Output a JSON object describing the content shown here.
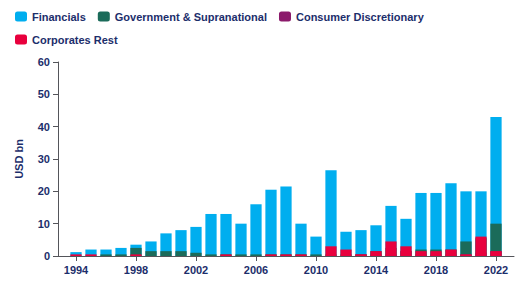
{
  "chart_data": {
    "type": "bar",
    "stacked": true,
    "ylabel": "USD bn",
    "x": [
      1994,
      1995,
      1996,
      1997,
      1998,
      1999,
      2000,
      2001,
      2002,
      2003,
      2004,
      2005,
      2006,
      2007,
      2008,
      2009,
      2010,
      2011,
      2012,
      2013,
      2014,
      2015,
      2016,
      2017,
      2018,
      2019,
      2020,
      2021,
      2022
    ],
    "series": [
      {
        "name": "Financials",
        "color": "#00AEEF",
        "values": [
          1.2,
          2.0,
          2.0,
          2.5,
          3.5,
          4.5,
          7.0,
          8.0,
          9.0,
          13.0,
          13.0,
          10.0,
          16.0,
          20.5,
          21.5,
          10.0,
          6.0,
          26.5,
          7.5,
          8.0,
          9.5,
          15.5,
          11.5,
          19.5,
          19.5,
          22.5,
          20.0,
          20.0,
          43.0
        ]
      },
      {
        "name": "Government & Supranational",
        "color": "#1B6B5A",
        "values": [
          0.0,
          0.0,
          0.5,
          0.5,
          2.5,
          1.5,
          1.5,
          1.5,
          1.0,
          0.5,
          0.5,
          0.5,
          0.5,
          0.5,
          0.5,
          0.5,
          0.5,
          0.5,
          0.5,
          0.5,
          1.5,
          2.5,
          1.5,
          2.0,
          2.0,
          2.0,
          4.5,
          5.5,
          10.0
        ]
      },
      {
        "name": "Consumer Discretionary",
        "color": "#8B1A6B",
        "values": [
          0.0,
          0.0,
          0.0,
          0.0,
          0.0,
          0.0,
          0.0,
          0.0,
          0.0,
          0.0,
          0.0,
          0.0,
          0.0,
          0.0,
          0.0,
          0.0,
          0.0,
          0.0,
          0.0,
          0.5,
          0.5,
          0.5,
          1.5,
          0.5,
          0.5,
          0.5,
          0.5,
          1.0,
          1.5
        ]
      },
      {
        "name": "Corporates Rest",
        "color": "#E8003D",
        "values": [
          0.5,
          0.5,
          0.0,
          0.0,
          0.5,
          0.0,
          0.0,
          0.0,
          0.0,
          0.0,
          0.5,
          0.0,
          0.0,
          0.5,
          0.5,
          0.5,
          0.0,
          3.0,
          2.0,
          0.5,
          1.5,
          4.5,
          3.0,
          1.5,
          1.5,
          2.0,
          0.5,
          6.0,
          1.5
        ]
      }
    ],
    "xlim": [
      1992.8,
      2023.2
    ],
    "xticks": [
      1994,
      1998,
      2002,
      2006,
      2010,
      2014,
      2018,
      2022
    ],
    "ylim": [
      0,
      60
    ],
    "yticks": [
      0,
      10,
      20,
      30,
      40,
      50,
      60
    ],
    "grid": false,
    "legend": "upper left"
  }
}
